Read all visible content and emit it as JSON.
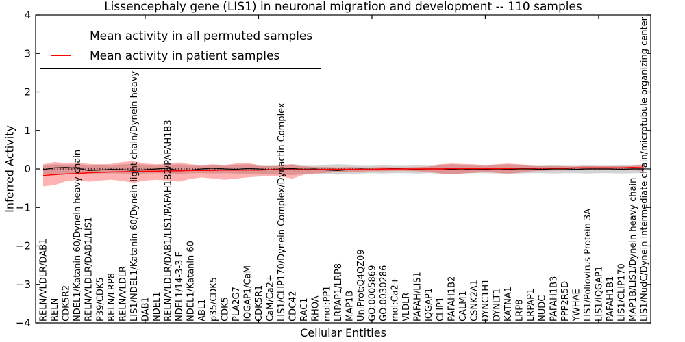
{
  "chart_data": {
    "type": "line",
    "title": "Lissencephaly gene (LIS1) in neuronal migration and development -- 110 samples",
    "xlabel": "Cellular Entities",
    "ylabel": "Inferred Activity",
    "ylim": [
      -4,
      4
    ],
    "ytick_labels": [
      "4",
      "3",
      "2",
      "1",
      "0",
      "−1",
      "−2",
      "−3",
      "−4"
    ],
    "ytick_values": [
      4,
      3,
      2,
      1,
      0,
      -1,
      -2,
      -3,
      -4
    ],
    "grid": false,
    "legend_position": "upper-left",
    "legend_entries": [
      {
        "label": "Mean activity in all permuted samples",
        "color": "#000000"
      },
      {
        "label": "Mean activity in patient samples",
        "color": "#ff0000"
      }
    ],
    "reference_line": {
      "y": 0,
      "style": "dotted",
      "color": "#000000"
    },
    "categories": [
      "RELN/VLDLR/DAB1",
      "RELN",
      "CDK5R2",
      "NDEL1/Katanin 60/Dynein heavy chain",
      "RELN/VLDLR/DAB1/LIS1",
      "P39/CDK5",
      "RELN/LRP8",
      "RELN/VLDLR",
      "LIS1/NDEL1/Katanin 60/Dynein light chain/Dynein heavy chain",
      "DAB1",
      "NDEL1",
      "RELN/VLDLR/DAB1/LIS1/PAFAH1B2/PAFAH1B3",
      "NDEL1/14-3-3 E",
      "NDEL1/Katanin 60",
      "ABL1",
      "p35/CDK5",
      "CDK5",
      "PLA2G7",
      "IQGAP1/CaM",
      "CDK5R1",
      "CaM/Ca2+",
      "LIS1/CLIP170/Dynein Complex/Dynactin Complex",
      "CDC42",
      "RAC1",
      "RHOA",
      "mol:PP1",
      "LRPAP1/LRP8",
      "MAP1B",
      "UniProt:Q4QZ09",
      "GO:0005869",
      "GO:0030286",
      "mol:Ca2+",
      "VLDLR",
      "PAFAH/LIS1",
      "IQGAP1",
      "CLIP1",
      "PAFAH1B2",
      "CALM1",
      "CSNK2A1",
      "DYNC1H1",
      "DYNLT1",
      "KATNA1",
      "LRP8",
      "LRPAP1",
      "NUDC",
      "PAFAH1B3",
      "PPP2R5D",
      "YWHAE",
      "LIS1/Poliovirus Protein 3A",
      "LIS1/IQGAP1",
      "PAFAH1B1",
      "LIS1/CLIP170",
      "MAP1B/LIS1/Dynein heavy chain",
      "LIS1/NudC/Dynein intermediate chain/microtubule organizing center"
    ],
    "series": [
      {
        "name": "Mean activity in all permuted samples",
        "color": "#000000",
        "style": "solid",
        "values": [
          -0.02,
          0.03,
          0.04,
          0.02,
          -0.04,
          -0.03,
          -0.01,
          -0.02,
          -0.04,
          -0.02,
          0.0,
          0.02,
          -0.05,
          -0.03,
          0.0,
          0.02,
          0.0,
          -0.01,
          0.01,
          0.0,
          -0.02,
          0.0,
          0.01,
          -0.01,
          0.0,
          -0.03,
          -0.04,
          -0.02,
          0.0,
          -0.01,
          0.0,
          0.01,
          0.0,
          -0.01,
          0.0,
          0.0,
          -0.01,
          0.0,
          -0.02,
          -0.01,
          0.0,
          -0.01,
          0.0,
          0.0,
          -0.01,
          0.0,
          0.0,
          -0.01,
          0.0,
          0.0,
          0.0,
          -0.01,
          0.0,
          0.0
        ]
      },
      {
        "name": "Mean activity in patient samples",
        "color": "#ff0000",
        "style": "solid",
        "values": [
          -0.17,
          -0.15,
          -0.13,
          -0.12,
          -0.1,
          -0.09,
          -0.08,
          -0.07,
          -0.07,
          -0.06,
          -0.06,
          -0.05,
          -0.05,
          -0.04,
          -0.04,
          -0.04,
          -0.03,
          -0.03,
          -0.03,
          -0.03,
          -0.02,
          -0.02,
          -0.02,
          -0.02,
          -0.02,
          -0.01,
          -0.01,
          -0.01,
          -0.01,
          -0.01,
          0.0,
          0.0,
          0.0,
          0.0,
          0.0,
          0.0,
          0.01,
          0.01,
          0.01,
          0.01,
          0.01,
          0.01,
          0.02,
          0.02,
          0.02,
          0.02,
          0.02,
          0.03,
          0.03,
          0.03,
          0.03,
          0.03,
          0.04,
          0.03
        ]
      }
    ],
    "bands": [
      {
        "name": "permuted-samples-range",
        "color": "#808080",
        "opacity": 0.35,
        "upper": [
          0.1,
          0.12,
          0.11,
          0.12,
          0.1,
          0.11,
          0.1,
          0.12,
          0.13,
          0.11,
          0.1,
          0.11,
          0.12,
          0.1,
          0.1,
          0.11,
          0.1,
          0.11,
          0.12,
          0.1,
          0.1,
          0.11,
          0.12,
          0.1,
          0.1,
          0.11,
          0.12,
          0.11,
          0.1,
          0.1,
          0.11,
          0.1,
          0.1,
          0.11,
          0.1,
          0.11,
          0.12,
          0.11,
          0.1,
          0.1,
          0.11,
          0.12,
          0.11,
          0.1,
          0.1,
          0.11,
          0.1,
          0.1,
          0.11,
          0.1,
          0.1,
          0.11,
          0.1,
          0.1
        ],
        "lower": [
          -0.12,
          -0.13,
          -0.12,
          -0.13,
          -0.12,
          -0.12,
          -0.11,
          -0.13,
          -0.14,
          -0.12,
          -0.11,
          -0.12,
          -0.13,
          -0.11,
          -0.11,
          -0.12,
          -0.11,
          -0.12,
          -0.13,
          -0.12,
          -0.14,
          -0.15,
          -0.16,
          -0.13,
          -0.12,
          -0.13,
          -0.15,
          -0.13,
          -0.12,
          -0.11,
          -0.12,
          -0.11,
          -0.11,
          -0.12,
          -0.11,
          -0.12,
          -0.13,
          -0.12,
          -0.11,
          -0.11,
          -0.12,
          -0.13,
          -0.12,
          -0.11,
          -0.11,
          -0.12,
          -0.11,
          -0.11,
          -0.12,
          -0.11,
          -0.11,
          -0.12,
          -0.11,
          -0.11
        ]
      },
      {
        "name": "patient-samples-range",
        "color": "#ff0000",
        "opacity": 0.3,
        "upper": [
          0.12,
          0.18,
          0.15,
          0.17,
          0.13,
          0.12,
          0.13,
          0.18,
          0.2,
          0.14,
          0.12,
          0.14,
          0.17,
          0.12,
          0.1,
          0.12,
          0.1,
          0.14,
          0.16,
          0.1,
          0.08,
          0.1,
          0.12,
          0.07,
          0.05,
          0.05,
          0.04,
          0.05,
          0.04,
          0.04,
          0.05,
          0.04,
          0.04,
          0.05,
          0.06,
          0.12,
          0.14,
          0.13,
          0.12,
          0.1,
          0.12,
          0.14,
          0.12,
          0.1,
          0.08,
          0.08,
          0.07,
          0.06,
          0.08,
          0.09,
          0.08,
          0.07,
          0.1,
          0.12
        ],
        "lower": [
          -0.45,
          -0.42,
          -0.32,
          -0.28,
          -0.33,
          -0.3,
          -0.28,
          -0.31,
          -0.36,
          -0.3,
          -0.28,
          -0.3,
          -0.33,
          -0.26,
          -0.22,
          -0.25,
          -0.28,
          -0.25,
          -0.22,
          -0.2,
          -0.18,
          -0.2,
          -0.25,
          -0.15,
          -0.12,
          -0.1,
          -0.08,
          -0.08,
          -0.07,
          -0.06,
          -0.06,
          -0.05,
          -0.05,
          -0.06,
          -0.08,
          -0.12,
          -0.14,
          -0.12,
          -0.1,
          -0.08,
          -0.1,
          -0.12,
          -0.1,
          -0.06,
          -0.05,
          -0.04,
          -0.04,
          -0.04,
          -0.03,
          -0.03,
          -0.03,
          -0.03,
          -0.03,
          -0.05
        ]
      }
    ]
  }
}
